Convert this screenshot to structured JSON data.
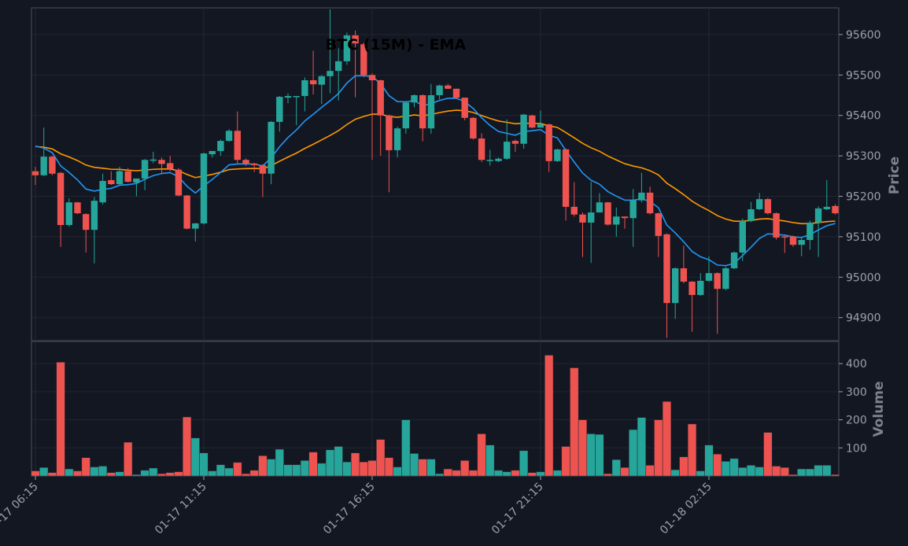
{
  "chart_data": {
    "type": "candlestick",
    "title": "BTC (15M) - EMA",
    "price_panel": {
      "ylabel": "Price",
      "ylim": [
        94843,
        95666
      ],
      "yticks": [
        94900,
        95000,
        95100,
        95200,
        95300,
        95400,
        95500,
        95600
      ],
      "ytick_labels": [
        "94900",
        "95000",
        "95100",
        "95200",
        "95300",
        "95400",
        "95500",
        "95600"
      ]
    },
    "volume_panel": {
      "ylabel": "Volume",
      "ylim": [
        0,
        479
      ],
      "yticks": [
        100,
        200,
        300,
        400
      ],
      "ytick_labels": [
        "100",
        "200",
        "300",
        "400"
      ]
    },
    "xaxis": {
      "interval": "15m",
      "tick_indices": [
        0,
        20,
        40,
        60,
        80
      ],
      "tick_labels": [
        "01-17 06:15",
        "01-17 11:15",
        "01-17 16:15",
        "01-17 21:15",
        "01-18 02:15"
      ]
    },
    "grid": true,
    "colors": {
      "up": "#26a69a",
      "down": "#ef5350",
      "ema_fast": "#2196f3",
      "ema_slow": "#ff9800",
      "background": "#131722",
      "grid": "#232733"
    },
    "ema": {
      "fast_span": 10,
      "slow_span": 30,
      "fast_start": 95340,
      "slow_start": 95328
    },
    "open": [
      95262,
      95252,
      95298,
      95258,
      95129,
      95185,
      95156,
      95117,
      95185,
      95240,
      95230,
      95262,
      95234,
      95244,
      95288,
      95290,
      95282,
      95266,
      95202,
      95120,
      95133,
      95304,
      95312,
      95337,
      95362,
      95290,
      95281,
      95277,
      95256,
      95384,
      95444,
      95446,
      95448,
      95487,
      95476,
      95497,
      95510,
      95534,
      95598,
      95576,
      95500,
      95487,
      95400,
      95314,
      95368,
      95432,
      95450,
      95368,
      95450,
      95474,
      95466,
      95444,
      95394,
      95343,
      95287,
      95287,
      95293,
      95337,
      95330,
      95400,
      95370,
      95378,
      95287,
      95316,
      95174,
      95155,
      95135,
      95160,
      95185,
      95130,
      95150,
      95146,
      95190,
      95209,
      95158,
      95106,
      94936,
      95022,
      94989,
      94956,
      94991,
      95010,
      94971,
      95022,
      95061,
      95139,
      95168,
      95193,
      95158,
      95101,
      95101,
      95080,
      95092,
      95135,
      95168,
      95176
    ],
    "high": [
      95273,
      95370,
      95300,
      95260,
      95195,
      95186,
      95158,
      95198,
      95256,
      95262,
      95273,
      95270,
      95244,
      95292,
      95310,
      95296,
      95300,
      95270,
      95203,
      95134,
      95308,
      95312,
      95340,
      95366,
      95410,
      95294,
      95283,
      95279,
      95386,
      95448,
      95455,
      95448,
      95494,
      95560,
      95500,
      95662,
      95566,
      95605,
      95610,
      95580,
      95504,
      95488,
      95402,
      95372,
      95435,
      95452,
      95452,
      95478,
      95476,
      95478,
      95466,
      95444,
      95396,
      95356,
      95315,
      95296,
      95390,
      95340,
      95404,
      95402,
      95412,
      95380,
      95318,
      95318,
      95235,
      95160,
      95236,
      95208,
      95186,
      95172,
      95150,
      95218,
      95258,
      95224,
      95160,
      95108,
      95024,
      95078,
      94990,
      95010,
      95052,
      95012,
      95026,
      95064,
      95145,
      95186,
      95208,
      95196,
      95160,
      95102,
      95103,
      95100,
      95140,
      95175,
      95240,
      95180
    ],
    "low": [
      95228,
      95250,
      95252,
      95075,
      95125,
      95156,
      95061,
      95034,
      95180,
      95228,
      95228,
      95234,
      95200,
      95215,
      95282,
      95256,
      95262,
      95200,
      95118,
      95088,
      95130,
      95296,
      95300,
      95335,
      95280,
      95275,
      95260,
      95198,
      95230,
      95360,
      95430,
      95376,
      95410,
      95452,
      95428,
      95455,
      95437,
      95525,
      95445,
      95494,
      95290,
      95300,
      95210,
      95296,
      95355,
      95420,
      95336,
      95355,
      95440,
      95465,
      95440,
      95388,
      95340,
      95285,
      95276,
      95285,
      95290,
      95310,
      95318,
      95368,
      95370,
      95260,
      95285,
      95140,
      95150,
      95050,
      95035,
      95160,
      95128,
      95100,
      95120,
      95075,
      95185,
      95155,
      95050,
      94850,
      94897,
      94985,
      94865,
      94954,
      94988,
      94860,
      94968,
      95020,
      95040,
      95136,
      95166,
      95155,
      95093,
      95060,
      95075,
      95052,
      95068,
      95050,
      95166,
      95155
    ],
    "close": [
      95252,
      95298,
      95256,
      95129,
      95185,
      95158,
      95117,
      95189,
      95238,
      95230,
      95262,
      95236,
      95244,
      95290,
      95291,
      95280,
      95268,
      95202,
      95120,
      95133,
      95306,
      95312,
      95337,
      95362,
      95290,
      95281,
      95277,
      95256,
      95384,
      95446,
      95448,
      95448,
      95487,
      95477,
      95497,
      95510,
      95534,
      95598,
      95578,
      95500,
      95487,
      95400,
      95314,
      95368,
      95432,
      95450,
      95368,
      95450,
      95474,
      95466,
      95444,
      95394,
      95343,
      95290,
      95290,
      95293,
      95335,
      95330,
      95402,
      95370,
      95378,
      95287,
      95316,
      95174,
      95155,
      95135,
      95160,
      95185,
      95130,
      95150,
      95146,
      95190,
      95209,
      95158,
      95102,
      94936,
      95022,
      94989,
      94956,
      94991,
      95010,
      94971,
      95022,
      95061,
      95139,
      95168,
      95193,
      95158,
      95098,
      95098,
      95080,
      95092,
      95135,
      95170,
      95174,
      95158
    ],
    "volume": [
      18,
      30,
      12,
      405,
      25,
      18,
      65,
      32,
      35,
      12,
      15,
      120,
      5,
      20,
      28,
      8,
      12,
      15,
      210,
      135,
      82,
      18,
      40,
      28,
      48,
      8,
      20,
      72,
      60,
      95,
      40,
      40,
      55,
      85,
      45,
      93,
      105,
      50,
      82,
      50,
      55,
      130,
      65,
      32,
      200,
      80,
      60,
      60,
      8,
      25,
      20,
      55,
      20,
      150,
      110,
      20,
      15,
      20,
      90,
      12,
      15,
      430,
      20,
      105,
      385,
      200,
      150,
      148,
      8,
      58,
      30,
      165,
      208,
      38,
      200,
      265,
      22,
      68,
      185,
      18,
      110,
      78,
      52,
      62,
      30,
      38,
      32,
      155,
      35,
      30,
      5,
      25,
      25,
      38,
      38,
      5
    ]
  }
}
